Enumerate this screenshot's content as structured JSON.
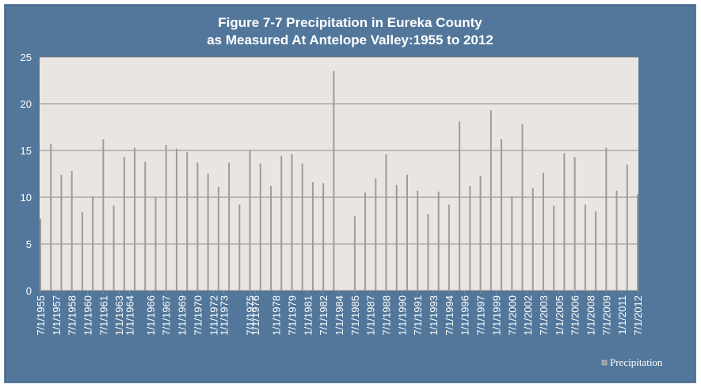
{
  "chart_data": {
    "type": "bar",
    "title": [
      "Figure 7-7 Precipitation in Eureka County",
      "as Measured At Antelope Valley:1955 to 2012"
    ],
    "x": [
      1955.5,
      1956.5,
      1957.5,
      1958.5,
      1959.5,
      1960.5,
      1961.5,
      1962.5,
      1963.5,
      1964.5,
      1965.5,
      1966.5,
      1967.5,
      1968.5,
      1969.5,
      1970.5,
      1971.5,
      1972.5,
      1973.5,
      1974.5,
      1975.5,
      1976.5,
      1977.5,
      1978.5,
      1979.5,
      1980.5,
      1981.5,
      1982.5,
      1983.5,
      1984.5,
      1985.5,
      1986.5,
      1987.5,
      1988.5,
      1989.5,
      1990.5,
      1991.5,
      1992.5,
      1993.5,
      1994.5,
      1995.5,
      1996.5,
      1997.5,
      1998.5,
      1999.5,
      2000.5,
      2001.5,
      2002.5,
      2003.5,
      2004.5,
      2005.5,
      2006.5,
      2007.5,
      2008.5,
      2009.5,
      2010.5,
      2011.5,
      2012.5
    ],
    "series": [
      {
        "name": "Precipitation",
        "color": "#9c9c9c",
        "values": [
          7.7,
          15.7,
          12.4,
          12.8,
          8.4,
          10.1,
          16.2,
          9.1,
          14.3,
          15.3,
          13.8,
          10.0,
          15.6,
          15.2,
          14.8,
          13.7,
          12.5,
          11.1,
          13.7,
          9.2,
          15.0,
          13.6,
          11.2,
          14.4,
          14.6,
          13.6,
          11.6,
          11.5,
          23.5,
          null,
          8.0,
          10.5,
          12.0,
          14.6,
          11.3,
          12.4,
          10.7,
          8.2,
          10.6,
          9.2,
          18.1,
          11.2,
          12.3,
          19.3,
          16.2,
          10.1,
          17.8,
          11.0,
          12.6,
          9.1,
          14.7,
          14.3,
          9.2,
          8.5,
          15.3,
          10.7,
          13.5,
          10.3
        ]
      }
    ],
    "xlim": [
      1955.5,
      2012.5
    ],
    "xticks": [
      {
        "value": 1955.5,
        "label": "7/1/1955"
      },
      {
        "value": 1957,
        "label": "1/1/1957"
      },
      {
        "value": 1958.5,
        "label": "7/1/1958"
      },
      {
        "value": 1960,
        "label": "1/1/1960"
      },
      {
        "value": 1961.5,
        "label": "7/1/1961"
      },
      {
        "value": 1963,
        "label": "1/1/1963"
      },
      {
        "value": 1964,
        "label": "1/1/1964"
      },
      {
        "value": 1966,
        "label": "1/1/1966"
      },
      {
        "value": 1967.5,
        "label": "7/1/1967"
      },
      {
        "value": 1969,
        "label": "1/1/1969"
      },
      {
        "value": 1970.5,
        "label": "7/1/1970"
      },
      {
        "value": 1972,
        "label": "1/1/1972"
      },
      {
        "value": 1973,
        "label": "1/1/1973"
      },
      {
        "value": 1975.5,
        "label": "7/1/1975"
      },
      {
        "value": 1976,
        "label": "1/1/1976"
      },
      {
        "value": 1978,
        "label": "1/1/1978"
      },
      {
        "value": 1979.5,
        "label": "7/1/1979"
      },
      {
        "value": 1981,
        "label": "1/1/1981"
      },
      {
        "value": 1982.5,
        "label": "7/1/1982"
      },
      {
        "value": 1984,
        "label": "1/1/1984"
      },
      {
        "value": 1985.5,
        "label": "7/1/1985"
      },
      {
        "value": 1987,
        "label": "1/1/1987"
      },
      {
        "value": 1988.5,
        "label": "7/1/1988"
      },
      {
        "value": 1990,
        "label": "1/1/1990"
      },
      {
        "value": 1991.5,
        "label": "7/1/1991"
      },
      {
        "value": 1993,
        "label": "1/1/1993"
      },
      {
        "value": 1994.5,
        "label": "7/1/1994"
      },
      {
        "value": 1996,
        "label": "1/1/1996"
      },
      {
        "value": 1997.5,
        "label": "7/1/1997"
      },
      {
        "value": 1999,
        "label": "1/1/1999"
      },
      {
        "value": 2000.5,
        "label": "7/1/2000"
      },
      {
        "value": 2002,
        "label": "1/1/2002"
      },
      {
        "value": 2003.5,
        "label": "7/1/2003"
      },
      {
        "value": 2005,
        "label": "1/1/2005"
      },
      {
        "value": 2006.5,
        "label": "7/1/2006"
      },
      {
        "value": 2008,
        "label": "1/1/2008"
      },
      {
        "value": 2009.5,
        "label": "7/1/2009"
      },
      {
        "value": 2011,
        "label": "1/1/2011"
      },
      {
        "value": 2012.5,
        "label": "7/1/2012"
      }
    ],
    "ylim": [
      0,
      25
    ],
    "yticks": [
      0,
      5,
      10,
      15,
      20,
      25
    ],
    "grid": true,
    "legend": "lower right"
  }
}
